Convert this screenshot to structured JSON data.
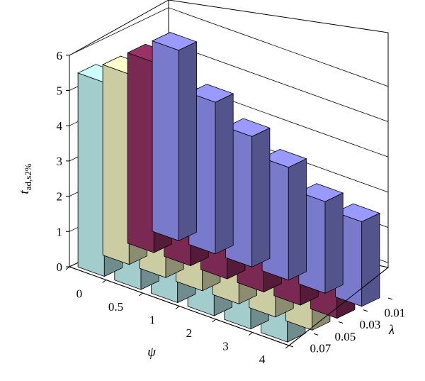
{
  "chart_data": {
    "type": "bar",
    "subtype": "3d-bar",
    "title": "",
    "xlabel": "ψ",
    "zlabel": "λ",
    "ylabel_main": "t",
    "ylabel_sub": "ad,s2%",
    "ylim": [
      0,
      6
    ],
    "yticks": [
      "0",
      "1",
      "2",
      "3",
      "4",
      "5",
      "6"
    ],
    "categories": [
      "0",
      "0.5",
      "1",
      "2",
      "3",
      "4"
    ],
    "grid": true,
    "legend": "none",
    "series": [
      {
        "name": "0.01",
        "color": "#9999ff",
        "values": [
          5.4,
          4.3,
          3.7,
          3.2,
          2.6,
          2.4
        ]
      },
      {
        "name": "0.03",
        "color": "#993366",
        "values": [
          5.4,
          4.3,
          3.8,
          3.3,
          2.8,
          2.1
        ]
      },
      {
        "name": "0.05",
        "color": "#ffffcc",
        "values": [
          5.4,
          4.5,
          4.0,
          3.5,
          3.1,
          2.3
        ]
      },
      {
        "name": "0.07",
        "color": "#ccffff",
        "values": [
          5.5,
          4.6,
          3.9,
          3.1,
          2.4,
          1.8
        ]
      }
    ]
  }
}
